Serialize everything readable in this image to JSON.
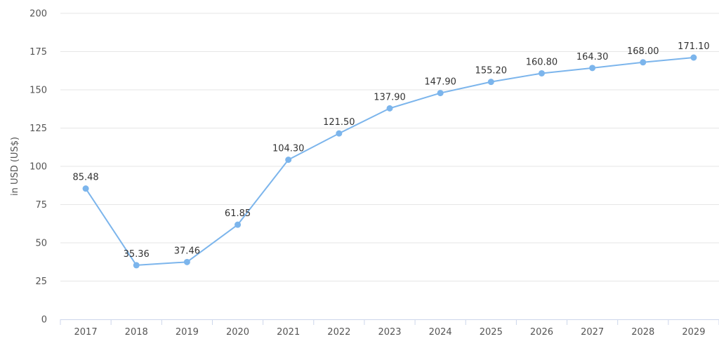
{
  "chart_data": {
    "type": "line",
    "ylabel": "in USD (US$)",
    "ylim": [
      0,
      200
    ],
    "yticks": [
      0,
      25,
      50,
      75,
      100,
      125,
      150,
      175,
      200
    ],
    "categories": [
      "2017",
      "2018",
      "2019",
      "2020",
      "2021",
      "2022",
      "2023",
      "2024",
      "2025",
      "2026",
      "2027",
      "2028",
      "2029"
    ],
    "series": [
      {
        "values": [
          85.48,
          35.36,
          37.46,
          61.85,
          104.3,
          121.5,
          137.9,
          147.9,
          155.2,
          160.8,
          164.3,
          168.0,
          171.1
        ],
        "labels": [
          "85.48",
          "35.36",
          "37.46",
          "61.85",
          "104.30",
          "121.50",
          "137.90",
          "147.90",
          "155.20",
          "160.80",
          "164.30",
          "168.00",
          "171.10"
        ],
        "color": "#7cb5ec"
      }
    ],
    "grid": true,
    "legend": "none"
  }
}
